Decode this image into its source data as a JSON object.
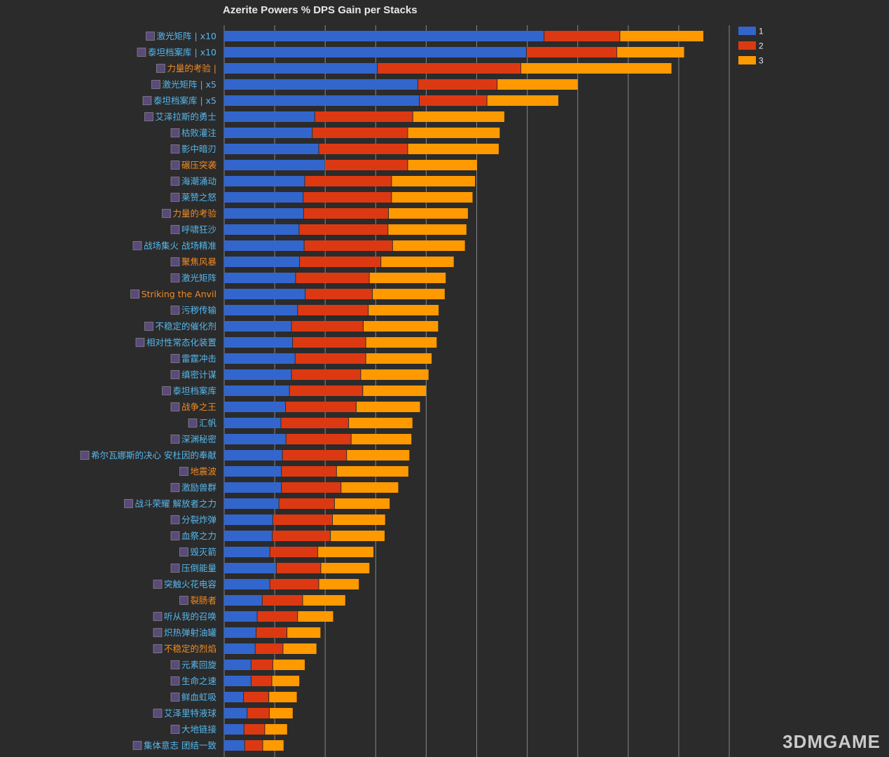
{
  "chart_data": {
    "type": "bar",
    "orientation": "horizontal",
    "stacked": true,
    "title": "Azerite Powers % DPS Gain per Stacks",
    "xlabel": "",
    "ylabel": "",
    "xlim": [
      0,
      10
    ],
    "grid": true,
    "legend": "top-right",
    "categories": [
      "激光矩阵 | x10",
      "泰坦档案库 | x10",
      "力量的考验 |",
      "激光矩阵 | x5",
      "泰坦档案库 | x5",
      "艾泽拉斯的勇士",
      "枯败灌注",
      "影中暗刃",
      "碾压突袭",
      "海潮涌动",
      "莱赞之怒",
      "力量的考验",
      "呼啸狂沙",
      "战场集火 战场精准",
      "聚焦风暴",
      "激光矩阵",
      "Striking the Anvil",
      "污秽传输",
      "不稳定的催化剂",
      "相对性常态化装置",
      "雷霆冲击",
      "缜密计谋",
      "泰坦档案库",
      "战争之王",
      "汇帆",
      "深渊秘密",
      "希尔瓦娜斯的决心 安杜因的奉献",
      "地震波",
      "激励兽群",
      "战斗荣耀 解放者之力",
      "分裂炸弹",
      "血祭之力",
      "毁灭箭",
      "压倒能量",
      "突触火花电容",
      "裂肠者",
      "听从我的召唤",
      "炽热弹射油罐",
      "不稳定的烈焰",
      "元素回旋",
      "生命之速",
      "鲜血虹吸",
      "艾泽里特液球",
      "大地链接",
      "集体意志 团结一致"
    ],
    "label_colors": [
      "#55b8ee",
      "#55b8ee",
      "#f08a24",
      "#55b8ee",
      "#55b8ee",
      "#55b8ee",
      "#55b8ee",
      "#55b8ee",
      "#f08a24",
      "#55b8ee",
      "#55b8ee",
      "#f08a24",
      "#55b8ee",
      "#55b8ee",
      "#f08a24",
      "#55b8ee",
      "#f08a24",
      "#55b8ee",
      "#55b8ee",
      "#55b8ee",
      "#55b8ee",
      "#55b8ee",
      "#55b8ee",
      "#f08a24",
      "#55b8ee",
      "#55b8ee",
      "#55b8ee",
      "#f08a24",
      "#55b8ee",
      "#55b8ee",
      "#55b8ee",
      "#55b8ee",
      "#55b8ee",
      "#55b8ee",
      "#55b8ee",
      "#f08a24",
      "#55b8ee",
      "#55b8ee",
      "#f08a24",
      "#55b8ee",
      "#55b8ee",
      "#55b8ee",
      "#55b8ee",
      "#55b8ee",
      "#55b8ee"
    ],
    "series": [
      {
        "name": "1",
        "color": "#3366cc",
        "values": [
          6.34,
          5.99,
          3.04,
          3.84,
          3.87,
          1.8,
          1.75,
          1.88,
          2.0,
          1.6,
          1.57,
          1.58,
          1.49,
          1.59,
          1.5,
          1.42,
          1.61,
          1.46,
          1.34,
          1.36,
          1.41,
          1.34,
          1.3,
          1.22,
          1.13,
          1.23,
          1.16,
          1.14,
          1.14,
          1.09,
          0.97,
          0.96,
          0.91,
          1.04,
          0.91,
          0.76,
          0.66,
          0.64,
          0.62,
          0.54,
          0.54,
          0.39,
          0.46,
          0.4,
          0.41
        ]
      },
      {
        "name": "2",
        "color": "#dc3912",
        "values": [
          1.5,
          1.79,
          2.84,
          1.57,
          1.34,
          1.94,
          1.89,
          1.76,
          1.64,
          1.72,
          1.75,
          1.68,
          1.76,
          1.75,
          1.61,
          1.46,
          1.33,
          1.4,
          1.42,
          1.45,
          1.4,
          1.37,
          1.45,
          1.4,
          1.34,
          1.29,
          1.27,
          1.09,
          1.18,
          1.1,
          1.18,
          1.15,
          0.95,
          0.88,
          0.97,
          0.8,
          0.8,
          0.61,
          0.55,
          0.43,
          0.41,
          0.5,
          0.44,
          0.41,
          0.36
        ]
      },
      {
        "name": "3",
        "color": "#ff9900",
        "values": [
          1.66,
          1.34,
          2.99,
          1.6,
          1.42,
          1.82,
          1.83,
          1.81,
          1.38,
          1.66,
          1.61,
          1.58,
          1.56,
          1.44,
          1.45,
          1.52,
          1.44,
          1.4,
          1.49,
          1.41,
          1.31,
          1.35,
          1.26,
          1.27,
          1.27,
          1.2,
          1.25,
          1.43,
          1.14,
          1.1,
          1.05,
          1.08,
          1.11,
          0.97,
          0.8,
          0.85,
          0.71,
          0.67,
          0.67,
          0.64,
          0.55,
          0.56,
          0.47,
          0.45,
          0.42
        ]
      }
    ]
  },
  "watermark": "3DMGAME"
}
